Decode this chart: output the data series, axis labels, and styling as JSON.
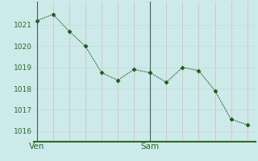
{
  "x_values": [
    0,
    1,
    2,
    3,
    4,
    5,
    6,
    7,
    8,
    9,
    10,
    11,
    12,
    13
  ],
  "y_values": [
    1021.2,
    1021.5,
    1020.7,
    1020.0,
    1018.75,
    1018.4,
    1018.9,
    1018.75,
    1018.3,
    1019.0,
    1018.85,
    1017.9,
    1016.55,
    1016.3
  ],
  "ven_x": 0,
  "sam_x": 7,
  "ven_label": "Ven",
  "sam_label": "Sam",
  "yticks": [
    1016,
    1017,
    1018,
    1019,
    1020,
    1021
  ],
  "ylim": [
    1015.5,
    1022.1
  ],
  "xlim": [
    -0.2,
    13.5
  ],
  "line_color": "#1a5c1a",
  "marker_color": "#1a5c1a",
  "bg_color": "#cdeaea",
  "grid_color_h": "#c8dede",
  "grid_color_v": "#ddbcbc",
  "axis_bottom_color": "#2d6a2d",
  "vline_color": "#555555",
  "tick_label_color": "#2d6a2d",
  "fontsize_ticks": 6.5,
  "fontsize_labels": 7.5
}
